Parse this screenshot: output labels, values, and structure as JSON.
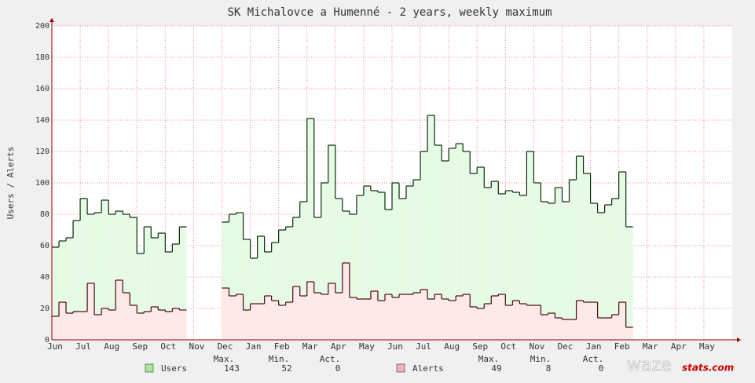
{
  "chart_data": {
    "type": "step-area",
    "title": "SK Michalovce a Humenné - 2 years, weekly maximum",
    "y_label": "Users / Alerts",
    "xlim": [
      0,
      24
    ],
    "ylim": [
      0,
      200
    ],
    "yticks": [
      0,
      20,
      40,
      60,
      80,
      100,
      120,
      140,
      160,
      180,
      200
    ],
    "xticks": [
      {
        "value": 0,
        "label": "Jun"
      },
      {
        "value": 1,
        "label": "Jul"
      },
      {
        "value": 2,
        "label": "Aug"
      },
      {
        "value": 3,
        "label": "Sep"
      },
      {
        "value": 4,
        "label": "Oct"
      },
      {
        "value": 5,
        "label": "Nov"
      },
      {
        "value": 6,
        "label": "Dec"
      },
      {
        "value": 7,
        "label": "Jan"
      },
      {
        "value": 8,
        "label": "Feb"
      },
      {
        "value": 9,
        "label": "Mar"
      },
      {
        "value": 10,
        "label": "Apr"
      },
      {
        "value": 11,
        "label": "May"
      },
      {
        "value": 12,
        "label": "Jun"
      },
      {
        "value": 13,
        "label": "Jul"
      },
      {
        "value": 14,
        "label": "Aug"
      },
      {
        "value": 15,
        "label": "Sep"
      },
      {
        "value": 16,
        "label": "Oct"
      },
      {
        "value": 17,
        "label": "Nov"
      },
      {
        "value": 18,
        "label": "Dec"
      },
      {
        "value": 19,
        "label": "Jan"
      },
      {
        "value": 20,
        "label": "Feb"
      },
      {
        "value": 21,
        "label": "Mar"
      },
      {
        "value": 22,
        "label": "Apr"
      },
      {
        "value": 23,
        "label": "May"
      }
    ],
    "grid": true,
    "step": 0.25,
    "x": [
      0,
      0.25,
      0.5,
      0.75,
      1,
      1.25,
      1.5,
      1.75,
      2,
      2.25,
      2.5,
      2.75,
      3,
      3.25,
      3.5,
      3.75,
      4,
      4.25,
      4.5,
      4.75,
      5,
      5.25,
      5.5,
      5.75,
      6,
      6.25,
      6.5,
      6.75,
      7,
      7.25,
      7.5,
      7.75,
      8,
      8.25,
      8.5,
      8.75,
      9,
      9.25,
      9.5,
      9.75,
      10,
      10.25,
      10.5,
      10.75,
      11,
      11.25,
      11.5,
      11.75,
      12,
      12.25,
      12.5,
      12.75,
      13,
      13.25,
      13.5,
      13.75,
      14,
      14.25,
      14.5,
      14.75,
      15,
      15.25,
      15.5,
      15.75,
      16,
      16.25,
      16.5,
      16.75,
      17,
      17.25,
      17.5,
      17.75,
      18,
      18.25,
      18.5,
      18.75,
      19,
      19.25,
      19.5,
      19.75,
      20,
      20.25
    ],
    "stat_labels": [
      "Max.",
      "Min.",
      "Act."
    ],
    "series": [
      {
        "name": "Users",
        "color": "#e6fbe6",
        "line_color": "#0b2a0b",
        "swatch": "#a8e89a",
        "stats": [
          143,
          52,
          0
        ],
        "values": [
          59,
          63,
          65,
          76,
          90,
          80,
          81,
          89,
          80,
          82,
          80,
          78,
          55,
          72,
          65,
          68,
          56,
          61,
          72,
          null,
          null,
          null,
          null,
          null,
          75,
          80,
          81,
          64,
          52,
          66,
          56,
          62,
          70,
          72,
          78,
          88,
          141,
          78,
          100,
          124,
          90,
          82,
          80,
          92,
          98,
          95,
          94,
          83,
          100,
          90,
          98,
          102,
          120,
          143,
          124,
          114,
          122,
          125,
          120,
          106,
          110,
          97,
          101,
          93,
          95,
          94,
          92,
          120,
          100,
          88,
          87,
          97,
          88,
          102,
          117,
          106,
          87,
          81,
          86,
          90,
          107,
          72
        ]
      },
      {
        "name": "Alerts",
        "color": "#fde9e9",
        "line_color": "#4a0a0a",
        "swatch": "#f2b4b4",
        "stats": [
          49,
          8,
          0
        ],
        "values": [
          15,
          24,
          17,
          18,
          18,
          36,
          16,
          20,
          19,
          38,
          30,
          22,
          17,
          18,
          21,
          19,
          18,
          20,
          19,
          null,
          null,
          null,
          null,
          null,
          33,
          28,
          29,
          19,
          23,
          23,
          28,
          25,
          22,
          24,
          34,
          28,
          37,
          30,
          29,
          36,
          30,
          49,
          27,
          26,
          26,
          31,
          25,
          29,
          27,
          29,
          29,
          30,
          32,
          26,
          29,
          26,
          25,
          28,
          29,
          21,
          20,
          23,
          28,
          29,
          22,
          25,
          23,
          22,
          22,
          16,
          17,
          14,
          13,
          13,
          25,
          24,
          24,
          14,
          14,
          16,
          24,
          8
        ]
      }
    ],
    "watermark": [
      "waze",
      "stats.com"
    ]
  }
}
